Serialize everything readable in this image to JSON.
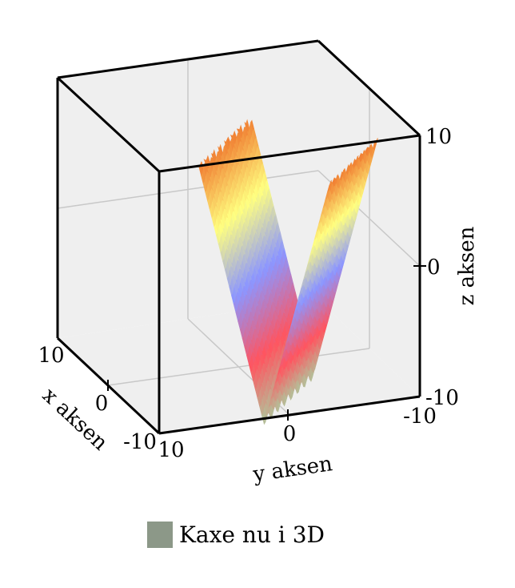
{
  "chart_data": {
    "type": "surface3d",
    "x_axis": {
      "label": "x aksen",
      "range": [
        -10,
        10
      ],
      "ticks": [
        "10",
        "0",
        "-10"
      ]
    },
    "y_axis": {
      "label": "y aksen",
      "range": [
        -10,
        10
      ],
      "ticks": [
        "10",
        "0",
        "-10"
      ]
    },
    "z_axis": {
      "label": "z aksen",
      "range": [
        -10,
        10
      ],
      "ticks": [
        "10",
        "0",
        "-10"
      ]
    },
    "surface_description": "V-shaped trough along x, z rises with |y|, small ripples along x",
    "colormap": [
      "#a0dca8",
      "#ff5560",
      "#8c96ff",
      "#ffff80",
      "#f07a30"
    ],
    "box_background": "#efefef",
    "grid": true,
    "legend": {
      "position": "bottom-center",
      "entries": [
        {
          "label": "Kaxe nu i 3D",
          "color": "#8c9888"
        }
      ]
    }
  }
}
